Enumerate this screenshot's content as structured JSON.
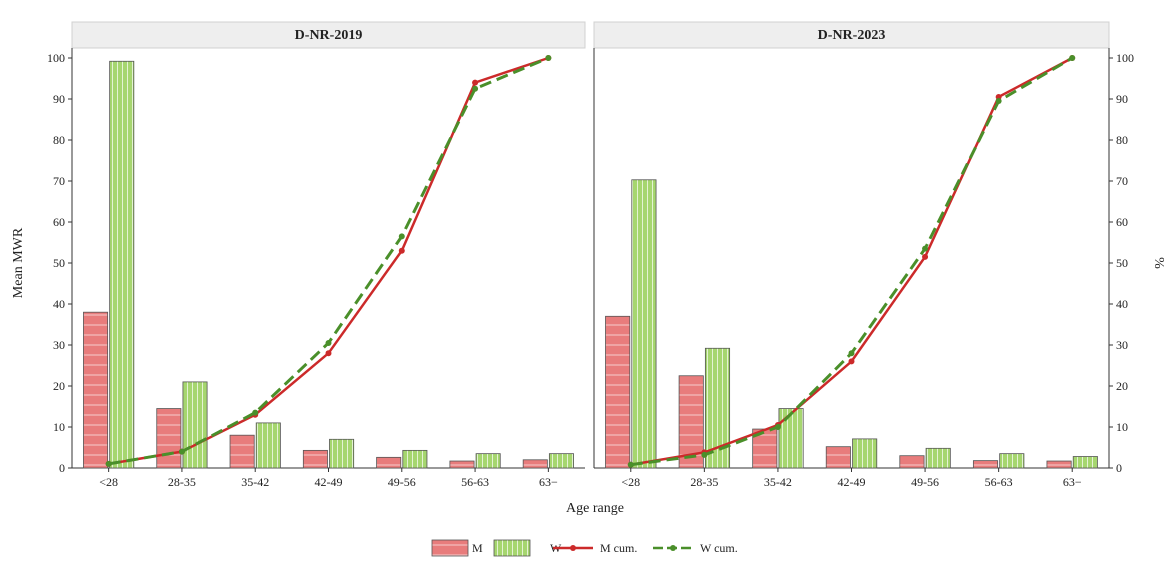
{
  "chart_data": {
    "type": "bar",
    "xlabel": "Age range",
    "ylabel": "Mean MWR",
    "ylabel_right": "%",
    "categories": [
      "<28",
      "28-35",
      "35-42",
      "42-49",
      "49-56",
      "56-63",
      "63−"
    ],
    "ylim": [
      0,
      100
    ],
    "yticks": [
      0,
      10,
      20,
      30,
      40,
      50,
      60,
      70,
      80,
      90,
      100
    ],
    "grid": false,
    "legend": {
      "position": "bottom",
      "items": [
        {
          "label": "M",
          "kind": "bar",
          "color": "#e87c7c"
        },
        {
          "label": "W",
          "kind": "bar",
          "color": "#a6d66f"
        },
        {
          "label": "M cum.",
          "kind": "line",
          "color": "#cc2a2a"
        },
        {
          "label": "W cum.",
          "kind": "dashed-line",
          "color": "#4a8f2a"
        }
      ]
    },
    "panels": [
      {
        "title": "D-NR-2019",
        "series": [
          {
            "name": "M",
            "type": "bar",
            "values": [
              38,
              14.5,
              8,
              4.3,
              2.6,
              1.7,
              2
            ]
          },
          {
            "name": "W",
            "type": "bar",
            "values": [
              99.2,
              21,
              11,
              7,
              4.3,
              3.5,
              3.5
            ]
          },
          {
            "name": "M cum.",
            "type": "line",
            "values": [
              1,
              4,
              13,
              28,
              53,
              94,
              100
            ]
          },
          {
            "name": "W cum.",
            "type": "line",
            "values": [
              1,
              4,
              13.5,
              30.5,
              56.5,
              92.5,
              100
            ]
          }
        ]
      },
      {
        "title": "D-NR-2023",
        "series": [
          {
            "name": "M",
            "type": "bar",
            "values": [
              37,
              22.5,
              9.5,
              5.2,
              3,
              1.8,
              1.7
            ]
          },
          {
            "name": "W",
            "type": "bar",
            "values": [
              70.3,
              29.2,
              14.5,
              7.1,
              4.8,
              3.5,
              2.8
            ]
          },
          {
            "name": "M cum.",
            "type": "line",
            "values": [
              0.8,
              3.8,
              10.5,
              26,
              51.5,
              90.5,
              100
            ]
          },
          {
            "name": "W cum.",
            "type": "line",
            "values": [
              0.8,
              3.2,
              10,
              28,
              53.5,
              89.5,
              100
            ]
          }
        ]
      }
    ]
  }
}
